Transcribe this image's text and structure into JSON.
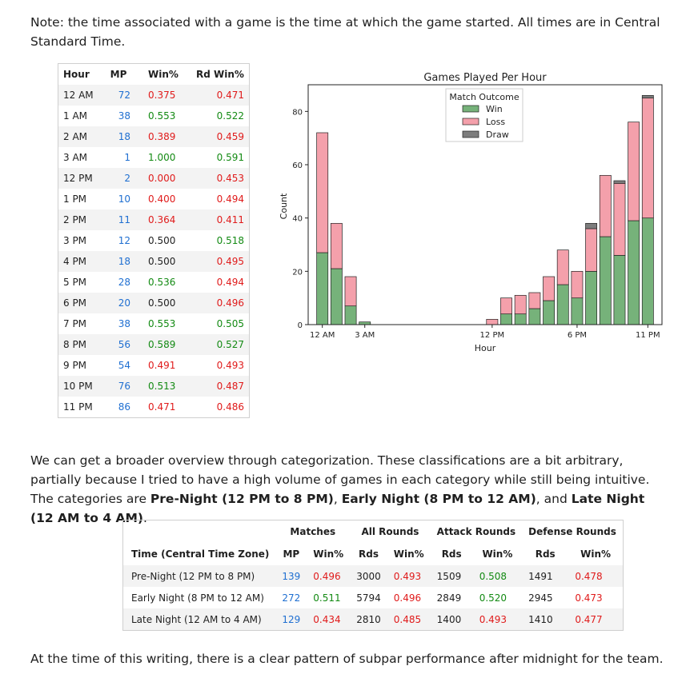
{
  "intro": "Note: the time associated with a game is the time at which the game started. All times are in Central Standard Time.",
  "hour_table": {
    "headers": [
      "Hour",
      "MP",
      "Win%",
      "Rd Win%"
    ],
    "rows": [
      {
        "hour": "12 AM",
        "mp": "72",
        "win": "0.375",
        "rd": "0.471"
      },
      {
        "hour": "1 AM",
        "mp": "38",
        "win": "0.553",
        "rd": "0.522"
      },
      {
        "hour": "2 AM",
        "mp": "18",
        "win": "0.389",
        "rd": "0.459"
      },
      {
        "hour": "3 AM",
        "mp": "1",
        "win": "1.000",
        "rd": "0.591"
      },
      {
        "hour": "12 PM",
        "mp": "2",
        "win": "0.000",
        "rd": "0.453"
      },
      {
        "hour": "1 PM",
        "mp": "10",
        "win": "0.400",
        "rd": "0.494"
      },
      {
        "hour": "2 PM",
        "mp": "11",
        "win": "0.364",
        "rd": "0.411"
      },
      {
        "hour": "3 PM",
        "mp": "12",
        "win": "0.500",
        "rd": "0.518"
      },
      {
        "hour": "4 PM",
        "mp": "18",
        "win": "0.500",
        "rd": "0.495"
      },
      {
        "hour": "5 PM",
        "mp": "28",
        "win": "0.536",
        "rd": "0.494"
      },
      {
        "hour": "6 PM",
        "mp": "20",
        "win": "0.500",
        "rd": "0.496"
      },
      {
        "hour": "7 PM",
        "mp": "38",
        "win": "0.553",
        "rd": "0.505"
      },
      {
        "hour": "8 PM",
        "mp": "56",
        "win": "0.589",
        "rd": "0.527"
      },
      {
        "hour": "9 PM",
        "mp": "54",
        "win": "0.491",
        "rd": "0.493"
      },
      {
        "hour": "10 PM",
        "mp": "76",
        "win": "0.513",
        "rd": "0.487"
      },
      {
        "hour": "11 PM",
        "mp": "86",
        "win": "0.471",
        "rd": "0.486"
      }
    ]
  },
  "chart_data": {
    "type": "bar",
    "stacked": true,
    "title": "Games Played Per Hour",
    "xlabel": "Hour",
    "ylabel": "Count",
    "ylim": [
      0,
      90
    ],
    "xlim": [
      -1,
      24
    ],
    "yticks": [
      0,
      20,
      40,
      60,
      80
    ],
    "xticks": [
      {
        "x": 0,
        "label": "12 AM"
      },
      {
        "x": 3,
        "label": "3 AM"
      },
      {
        "x": 12,
        "label": "12 PM"
      },
      {
        "x": 18,
        "label": "6 PM"
      },
      {
        "x": 23,
        "label": "11 PM"
      }
    ],
    "x": [
      0,
      1,
      2,
      3,
      4,
      5,
      6,
      7,
      8,
      9,
      10,
      11,
      12,
      13,
      14,
      15,
      16,
      17,
      18,
      19,
      20,
      21,
      22,
      23
    ],
    "legend_title": "Match Outcome",
    "legend_position": "top-center",
    "series": [
      {
        "name": "Win",
        "color": "#76b27a",
        "values": [
          27,
          21,
          7,
          1,
          0,
          0,
          0,
          0,
          0,
          0,
          0,
          0,
          0,
          4,
          4,
          6,
          9,
          15,
          10,
          20,
          33,
          26,
          39,
          40
        ]
      },
      {
        "name": "Loss",
        "color": "#f4a0ab",
        "values": [
          45,
          17,
          11,
          0,
          0,
          0,
          0,
          0,
          0,
          0,
          0,
          0,
          2,
          6,
          7,
          6,
          9,
          13,
          10,
          16,
          23,
          27,
          37,
          45
        ]
      },
      {
        "name": "Draw",
        "color": "#7d7d7d",
        "values": [
          0,
          0,
          0,
          0,
          0,
          0,
          0,
          0,
          0,
          0,
          0,
          0,
          0,
          0,
          0,
          0,
          0,
          0,
          0,
          2,
          0,
          1,
          0,
          1
        ]
      }
    ]
  },
  "para2": {
    "text1": "We can get a broader overview through categorization. These classifications are a bit arbitrary, partially because I tried to have a high volume of games in each category while still being intuitive. The categories are ",
    "cat1": "Pre-Night (12 PM to 8 PM)",
    "sep1": ", ",
    "cat2": "Early Night (8 PM to 12 AM)",
    "sep2": ", and ",
    "cat3": "Late Night (12 AM to 4 AM)",
    "end": "."
  },
  "cat_table": {
    "group_headers": [
      "Matches",
      "All Rounds",
      "Attack Rounds",
      "Defense Rounds"
    ],
    "sub_headers": [
      "Time (Central Time Zone)",
      "MP",
      "Win%",
      "Rds",
      "Win%",
      "Rds",
      "Win%",
      "Rds",
      "Win%"
    ],
    "rows": [
      {
        "name": "Pre-Night (12 PM to 8 PM)",
        "mp": "139",
        "mwin": "0.496",
        "ar": "3000",
        "awin": "0.493",
        "atr": "1509",
        "atwin": "0.508",
        "dr": "1491",
        "dwin": "0.478"
      },
      {
        "name": "Early Night (8 PM to 12 AM)",
        "mp": "272",
        "mwin": "0.511",
        "ar": "5794",
        "awin": "0.496",
        "atr": "2849",
        "atwin": "0.520",
        "dr": "2945",
        "dwin": "0.473"
      },
      {
        "name": "Late Night (12 AM to 4 AM)",
        "mp": "129",
        "mwin": "0.434",
        "ar": "2810",
        "awin": "0.485",
        "atr": "1400",
        "atwin": "0.493",
        "dr": "1410",
        "dwin": "0.477"
      }
    ]
  },
  "outro": "At the time of this writing, there is a clear pattern of subpar performance after midnight for the team.",
  "colors": {
    "good": "#138a13",
    "bad": "#e01b1b",
    "neutral": "#1f1f1f",
    "mp": "#1f6fd1"
  }
}
